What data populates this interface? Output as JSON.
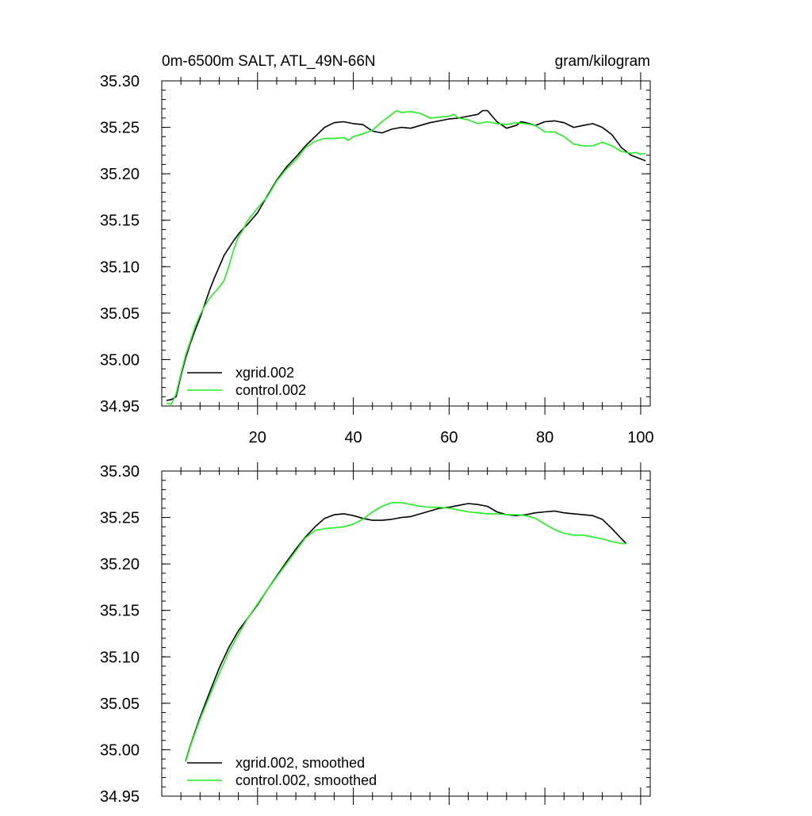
{
  "chart_data": [
    {
      "type": "line",
      "title": "0m-6500m SALT, ATL_49N-66N",
      "units": "gram/kilogram",
      "xlabel": "",
      "ylabel": "",
      "xlim": [
        0,
        102
      ],
      "ylim": [
        34.95,
        35.3
      ],
      "x_ticks": [
        20,
        40,
        60,
        80,
        100
      ],
      "x_tick_labels": [
        "20",
        "40",
        "60",
        "80",
        "100"
      ],
      "y_ticks": [
        34.95,
        35.0,
        35.05,
        35.1,
        35.15,
        35.2,
        35.25,
        35.3
      ],
      "y_tick_labels": [
        "34.95",
        "35.00",
        "35.05",
        "35.10",
        "35.15",
        "35.20",
        "35.25",
        "35.30"
      ],
      "grid": false,
      "legend_position": "bottom-left",
      "series": [
        {
          "name": "xgrid.002",
          "color": "#000000",
          "points": [
            [
              1,
              34.956
            ],
            [
              2,
              34.957
            ],
            [
              3,
              34.96
            ],
            [
              4,
              34.983
            ],
            [
              5,
              35.002
            ],
            [
              6,
              35.018
            ],
            [
              7,
              35.032
            ],
            [
              8,
              35.045
            ],
            [
              9,
              35.06
            ],
            [
              10,
              35.075
            ],
            [
              11,
              35.088
            ],
            [
              12,
              35.1
            ],
            [
              13,
              35.112
            ],
            [
              14,
              35.12
            ],
            [
              15,
              35.128
            ],
            [
              16,
              35.135
            ],
            [
              17,
              35.141
            ],
            [
              18,
              35.146
            ],
            [
              20,
              35.158
            ],
            [
              22,
              35.176
            ],
            [
              24,
              35.193
            ],
            [
              26,
              35.207
            ],
            [
              28,
              35.218
            ],
            [
              30,
              35.23
            ],
            [
              32,
              35.24
            ],
            [
              34,
              35.25
            ],
            [
              36,
              35.255
            ],
            [
              38,
              35.256
            ],
            [
              40,
              35.254
            ],
            [
              42,
              35.253
            ],
            [
              44,
              35.246
            ],
            [
              46,
              35.244
            ],
            [
              48,
              35.248
            ],
            [
              50,
              35.25
            ],
            [
              52,
              35.249
            ],
            [
              54,
              35.252
            ],
            [
              56,
              35.255
            ],
            [
              58,
              35.257
            ],
            [
              60,
              35.259
            ],
            [
              62,
              35.26
            ],
            [
              64,
              35.262
            ],
            [
              66,
              35.264
            ],
            [
              67,
              35.268
            ],
            [
              68,
              35.268
            ],
            [
              69,
              35.262
            ],
            [
              70,
              35.256
            ],
            [
              72,
              35.249
            ],
            [
              74,
              35.252
            ],
            [
              75,
              35.256
            ],
            [
              76,
              35.255
            ],
            [
              78,
              35.252
            ],
            [
              80,
              35.256
            ],
            [
              82,
              35.257
            ],
            [
              84,
              35.255
            ],
            [
              86,
              35.25
            ],
            [
              88,
              35.252
            ],
            [
              90,
              35.254
            ],
            [
              92,
              35.25
            ],
            [
              94,
              35.242
            ],
            [
              96,
              35.228
            ],
            [
              98,
              35.22
            ],
            [
              100,
              35.216
            ],
            [
              101,
              35.214
            ]
          ]
        },
        {
          "name": "control.002",
          "color": "#1ef21e",
          "points": [
            [
              1,
              34.953
            ],
            [
              2,
              34.952
            ],
            [
              3,
              34.963
            ],
            [
              4,
              34.985
            ],
            [
              5,
              35.005
            ],
            [
              6,
              35.02
            ],
            [
              7,
              35.036
            ],
            [
              8,
              35.048
            ],
            [
              9,
              35.058
            ],
            [
              10,
              35.066
            ],
            [
              11,
              35.072
            ],
            [
              12,
              35.078
            ],
            [
              13,
              35.085
            ],
            [
              14,
              35.1
            ],
            [
              15,
              35.118
            ],
            [
              16,
              35.132
            ],
            [
              17,
              35.14
            ],
            [
              18,
              35.15
            ],
            [
              20,
              35.163
            ],
            [
              22,
              35.175
            ],
            [
              24,
              35.192
            ],
            [
              26,
              35.205
            ],
            [
              28,
              35.215
            ],
            [
              30,
              35.228
            ],
            [
              32,
              35.235
            ],
            [
              34,
              35.238
            ],
            [
              36,
              35.238
            ],
            [
              38,
              35.239
            ],
            [
              39,
              35.236
            ],
            [
              40,
              35.24
            ],
            [
              42,
              35.243
            ],
            [
              44,
              35.247
            ],
            [
              46,
              35.256
            ],
            [
              48,
              35.264
            ],
            [
              49,
              35.268
            ],
            [
              50,
              35.266
            ],
            [
              52,
              35.267
            ],
            [
              54,
              35.265
            ],
            [
              56,
              35.26
            ],
            [
              58,
              35.261
            ],
            [
              60,
              35.262
            ],
            [
              61,
              35.264
            ],
            [
              62,
              35.26
            ],
            [
              64,
              35.258
            ],
            [
              66,
              35.254
            ],
            [
              68,
              35.256
            ],
            [
              70,
              35.254
            ],
            [
              72,
              35.253
            ],
            [
              74,
              35.255
            ],
            [
              76,
              35.254
            ],
            [
              78,
              35.252
            ],
            [
              80,
              35.245
            ],
            [
              82,
              35.245
            ],
            [
              84,
              35.24
            ],
            [
              86,
              35.232
            ],
            [
              88,
              35.23
            ],
            [
              90,
              35.23
            ],
            [
              92,
              35.234
            ],
            [
              94,
              35.23
            ],
            [
              96,
              35.224
            ],
            [
              98,
              35.222
            ],
            [
              99,
              35.223
            ],
            [
              100,
              35.221
            ],
            [
              101,
              35.222
            ]
          ]
        }
      ]
    },
    {
      "type": "line",
      "title": "",
      "xlabel": "",
      "ylabel": "",
      "xlim": [
        0,
        102
      ],
      "ylim": [
        34.95,
        35.3
      ],
      "x_ticks": [
        20,
        40,
        60,
        80,
        100
      ],
      "x_tick_labels": [],
      "y_ticks": [
        34.95,
        35.0,
        35.05,
        35.1,
        35.15,
        35.2,
        35.25,
        35.3
      ],
      "y_tick_labels": [
        "34.95",
        "35.00",
        "35.05",
        "35.10",
        "35.15",
        "35.20",
        "35.25",
        "35.30"
      ],
      "grid": false,
      "legend_position": "bottom-left",
      "series": [
        {
          "name": "xgrid.002, smoothed",
          "color": "#000000",
          "points": [
            [
              5,
              34.988
            ],
            [
              6,
              35.005
            ],
            [
              8,
              35.035
            ],
            [
              10,
              35.062
            ],
            [
              12,
              35.088
            ],
            [
              14,
              35.11
            ],
            [
              16,
              35.128
            ],
            [
              18,
              35.142
            ],
            [
              20,
              35.156
            ],
            [
              22,
              35.172
            ],
            [
              24,
              35.187
            ],
            [
              26,
              35.202
            ],
            [
              28,
              35.216
            ],
            [
              30,
              35.229
            ],
            [
              32,
              35.24
            ],
            [
              34,
              35.249
            ],
            [
              36,
              35.253
            ],
            [
              38,
              35.254
            ],
            [
              40,
              35.252
            ],
            [
              42,
              35.249
            ],
            [
              44,
              35.247
            ],
            [
              46,
              35.247
            ],
            [
              48,
              35.248
            ],
            [
              50,
              35.25
            ],
            [
              52,
              35.251
            ],
            [
              54,
              35.254
            ],
            [
              56,
              35.257
            ],
            [
              58,
              35.26
            ],
            [
              60,
              35.261
            ],
            [
              62,
              35.263
            ],
            [
              64,
              35.265
            ],
            [
              66,
              35.264
            ],
            [
              68,
              35.262
            ],
            [
              70,
              35.256
            ],
            [
              72,
              35.253
            ],
            [
              74,
              35.252
            ],
            [
              76,
              35.253
            ],
            [
              78,
              35.255
            ],
            [
              80,
              35.256
            ],
            [
              82,
              35.257
            ],
            [
              84,
              35.255
            ],
            [
              86,
              35.254
            ],
            [
              88,
              35.253
            ],
            [
              90,
              35.252
            ],
            [
              92,
              35.248
            ],
            [
              94,
              35.238
            ],
            [
              96,
              35.227
            ],
            [
              97,
              35.222
            ]
          ]
        },
        {
          "name": "control.002, smoothed",
          "color": "#1ef21e",
          "points": [
            [
              5,
              34.987
            ],
            [
              6,
              35.004
            ],
            [
              8,
              35.033
            ],
            [
              10,
              35.058
            ],
            [
              12,
              35.082
            ],
            [
              14,
              35.105
            ],
            [
              16,
              35.124
            ],
            [
              18,
              35.142
            ],
            [
              20,
              35.157
            ],
            [
              22,
              35.172
            ],
            [
              24,
              35.186
            ],
            [
              26,
              35.2
            ],
            [
              28,
              35.214
            ],
            [
              30,
              35.228
            ],
            [
              32,
              35.236
            ],
            [
              34,
              35.238
            ],
            [
              36,
              35.239
            ],
            [
              38,
              35.24
            ],
            [
              40,
              35.243
            ],
            [
              42,
              35.248
            ],
            [
              44,
              35.256
            ],
            [
              46,
              35.262
            ],
            [
              48,
              35.266
            ],
            [
              50,
              35.266
            ],
            [
              52,
              35.264
            ],
            [
              54,
              35.262
            ],
            [
              56,
              35.261
            ],
            [
              58,
              35.261
            ],
            [
              60,
              35.26
            ],
            [
              62,
              35.258
            ],
            [
              64,
              35.256
            ],
            [
              66,
              35.255
            ],
            [
              68,
              35.254
            ],
            [
              70,
              35.254
            ],
            [
              72,
              35.253
            ],
            [
              74,
              35.253
            ],
            [
              76,
              35.252
            ],
            [
              78,
              35.249
            ],
            [
              80,
              35.243
            ],
            [
              82,
              35.237
            ],
            [
              84,
              35.233
            ],
            [
              86,
              35.231
            ],
            [
              88,
              35.231
            ],
            [
              90,
              35.229
            ],
            [
              92,
              35.227
            ],
            [
              94,
              35.224
            ],
            [
              96,
              35.222
            ],
            [
              97,
              35.222
            ]
          ]
        }
      ]
    }
  ]
}
